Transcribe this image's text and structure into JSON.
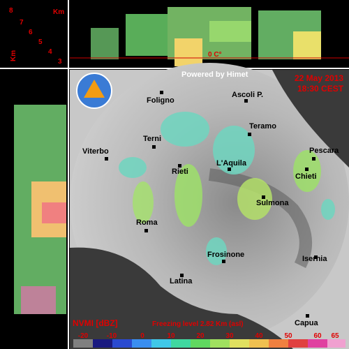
{
  "top_panel": {
    "km_label": "Km",
    "heights": [
      8,
      7,
      6,
      5,
      4,
      3
    ],
    "freezing_marker": "0 C°"
  },
  "side_panel": {
    "km_label": "Km"
  },
  "map": {
    "credit": "Powered by Himet",
    "date": "22 May 2013",
    "time": "18:30 CEST",
    "cities": [
      "Foligno",
      "Ascoli P.",
      "Teramo",
      "Terni",
      "Viterbo",
      "Pescara",
      "L'Aquila",
      "Rieti",
      "Chieti",
      "Sulmona",
      "Roma",
      "Frosinone",
      "Isernia",
      "Latina",
      "Capua"
    ]
  },
  "legend": {
    "title": "NVMI [dBZ]",
    "freezing_level": "Freezing level  2.82 Km (asl)",
    "ticks": [
      -20,
      -10,
      0,
      10,
      20,
      30,
      40,
      50,
      60,
      65
    ]
  }
}
